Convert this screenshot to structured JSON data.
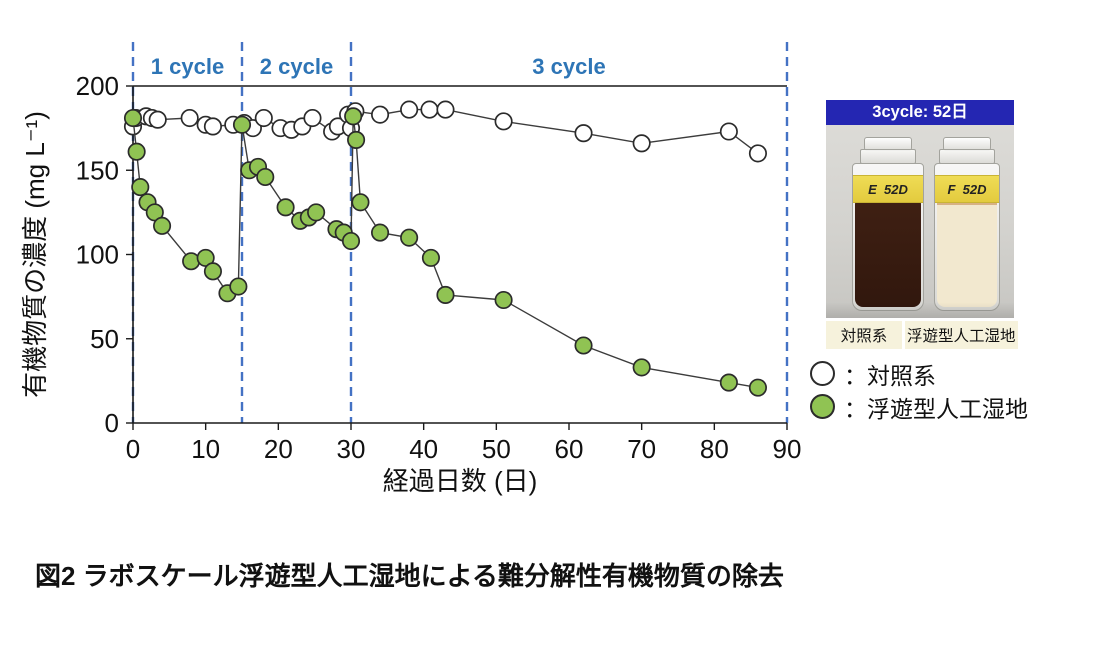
{
  "figure": {
    "caption": "図2 ラボスケール浮遊型人工湿地による難分解性有機物質の除去"
  },
  "chart_data": {
    "type": "line",
    "title": "",
    "xlabel": "経過日数 (日)",
    "ylabel": "有機物質の濃度 (mg L⁻¹)",
    "xlim": [
      0,
      90
    ],
    "ylim": [
      0,
      200
    ],
    "x_ticks": [
      0,
      10,
      20,
      30,
      40,
      50,
      60,
      70,
      80,
      90
    ],
    "y_ticks": [
      0,
      50,
      100,
      150,
      200
    ],
    "grid": false,
    "legend_position": "right-bottom",
    "cycle_dividers_x": [
      0,
      15,
      30,
      90
    ],
    "cycle_annotations": [
      {
        "label": "1 cycle",
        "x_center": 7.5
      },
      {
        "label": "2 cycle",
        "x_center": 22.5
      },
      {
        "label": "3 cycle",
        "x_center": 60
      }
    ],
    "colors": {
      "divider_blue": "#4472C4",
      "annotation_blue": "#2E75B6",
      "line_gray": "#3C3C3C",
      "marker_outline": "#2B2B2B"
    },
    "series": [
      {
        "name": "対照系",
        "marker": "open-circle",
        "marker_fill": "#FFFFFF",
        "points": [
          [
            0,
            176
          ],
          [
            0.4,
            181
          ],
          [
            1.8,
            182
          ],
          [
            2.6,
            181
          ],
          [
            3.4,
            180
          ],
          [
            7.8,
            181
          ],
          [
            10,
            177
          ],
          [
            11,
            176
          ],
          [
            13.8,
            177
          ],
          [
            15.3,
            178
          ],
          [
            16.5,
            175
          ],
          [
            18,
            181
          ],
          [
            20.3,
            175
          ],
          [
            21.8,
            174
          ],
          [
            23.3,
            176
          ],
          [
            24.7,
            181
          ],
          [
            27.4,
            173
          ],
          [
            28.2,
            176
          ],
          [
            29.6,
            183
          ],
          [
            30,
            175
          ],
          [
            30.6,
            185
          ],
          [
            34,
            183
          ],
          [
            38,
            186
          ],
          [
            40.8,
            186
          ],
          [
            43,
            186
          ],
          [
            51,
            179
          ],
          [
            62,
            172
          ],
          [
            70,
            166
          ],
          [
            82,
            173
          ],
          [
            86,
            160
          ]
        ]
      },
      {
        "name": "浮遊型人工湿地",
        "marker": "filled-circle",
        "marker_fill": "#90C353",
        "points": [
          [
            0,
            181
          ],
          [
            0.5,
            161
          ],
          [
            1,
            140
          ],
          [
            2,
            131
          ],
          [
            3,
            125
          ],
          [
            4,
            117
          ],
          [
            8,
            96
          ],
          [
            10,
            98
          ],
          [
            11,
            90
          ],
          [
            13,
            77
          ],
          [
            14.5,
            81
          ],
          [
            15,
            177
          ],
          [
            16,
            150
          ],
          [
            17.2,
            152
          ],
          [
            18.2,
            146
          ],
          [
            21,
            128
          ],
          [
            23,
            120
          ],
          [
            24.2,
            122
          ],
          [
            25.2,
            125
          ],
          [
            28,
            115
          ],
          [
            29,
            113
          ],
          [
            30,
            108
          ],
          [
            30.3,
            182
          ],
          [
            30.7,
            168
          ],
          [
            31.3,
            131
          ],
          [
            34,
            113
          ],
          [
            38,
            110
          ],
          [
            41,
            98
          ],
          [
            43,
            76
          ],
          [
            51,
            73
          ],
          [
            62,
            46
          ],
          [
            70,
            33
          ],
          [
            82,
            24
          ],
          [
            86,
            21
          ]
        ]
      }
    ]
  },
  "inset": {
    "header": "3cycle: 52日",
    "header_bg": "#2426B2",
    "vials": [
      {
        "label_text": "E  52D",
        "liquid_color": "#3F2013",
        "caption": "対照系"
      },
      {
        "label_text": "F  52D",
        "liquid_color": "#F2E8CF",
        "caption": "浮遊型人工湿地"
      }
    ]
  },
  "legend": {
    "colon": "：",
    "items": [
      {
        "marker": "open-circle",
        "label": "対照系"
      },
      {
        "marker": "filled-circle",
        "label": "浮遊型人工湿地"
      }
    ]
  }
}
